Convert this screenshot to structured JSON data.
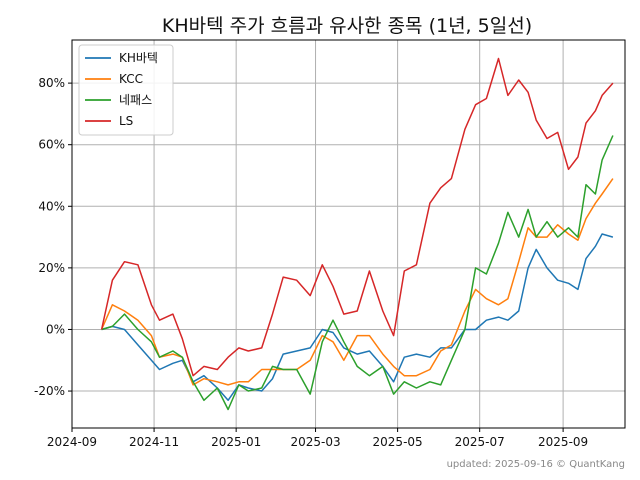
{
  "chart_data": {
    "type": "line",
    "title": "KH바텍 주가 흐름과 유사한 종목 (1년, 5일선)",
    "footer": "updated: 2025-09-16 © QuantKang",
    "x_ticks": [
      "2024-09",
      "2024-11",
      "2025-01",
      "2025-03",
      "2025-05",
      "2025-07",
      "2025-09"
    ],
    "y_ticks": [
      "-20%",
      "0%",
      "20%",
      "40%",
      "60%",
      "80%"
    ],
    "xlim": [
      "2024-09-01",
      "2025-10-17"
    ],
    "ylim": [
      -32,
      94
    ],
    "y_unit": "%",
    "grid": true,
    "legend_position": "upper-left",
    "series": [
      {
        "name": "KH바텍",
        "color": "#1f77b4",
        "points": [
          [
            "2024-09-23",
            0
          ],
          [
            "2024-10-01",
            1
          ],
          [
            "2024-10-10",
            0
          ],
          [
            "2024-10-20",
            -5
          ],
          [
            "2024-10-30",
            -10
          ],
          [
            "2024-11-05",
            -13
          ],
          [
            "2024-11-15",
            -11
          ],
          [
            "2024-11-22",
            -10
          ],
          [
            "2024-11-30",
            -17
          ],
          [
            "2024-12-08",
            -15
          ],
          [
            "2024-12-18",
            -19
          ],
          [
            "2024-12-26",
            -23
          ],
          [
            "2025-01-03",
            -18
          ],
          [
            "2025-01-10",
            -19
          ],
          [
            "2025-01-20",
            -20
          ],
          [
            "2025-01-28",
            -16
          ],
          [
            "2025-02-05",
            -8
          ],
          [
            "2025-02-15",
            -7
          ],
          [
            "2025-02-25",
            -6
          ],
          [
            "2025-03-06",
            0
          ],
          [
            "2025-03-14",
            -1
          ],
          [
            "2025-03-22",
            -6
          ],
          [
            "2025-04-01",
            -8
          ],
          [
            "2025-04-10",
            -7
          ],
          [
            "2025-04-20",
            -12
          ],
          [
            "2025-04-28",
            -17
          ],
          [
            "2025-05-06",
            -9
          ],
          [
            "2025-05-15",
            -8
          ],
          [
            "2025-05-25",
            -9
          ],
          [
            "2025-06-02",
            -6
          ],
          [
            "2025-06-10",
            -6
          ],
          [
            "2025-06-20",
            0
          ],
          [
            "2025-06-28",
            0
          ],
          [
            "2025-07-06",
            3
          ],
          [
            "2025-07-15",
            4
          ],
          [
            "2025-07-22",
            3
          ],
          [
            "2025-07-30",
            6
          ],
          [
            "2025-08-06",
            20
          ],
          [
            "2025-08-12",
            26
          ],
          [
            "2025-08-20",
            20
          ],
          [
            "2025-08-28",
            16
          ],
          [
            "2025-09-05",
            15
          ],
          [
            "2025-09-12",
            13
          ],
          [
            "2025-09-18",
            23
          ],
          [
            "2025-09-25",
            27
          ],
          [
            "2025-09-30",
            31
          ],
          [
            "2025-10-08",
            30
          ]
        ]
      },
      {
        "name": "KCC",
        "color": "#ff7f0e",
        "points": [
          [
            "2024-09-23",
            0
          ],
          [
            "2024-10-01",
            8
          ],
          [
            "2024-10-10",
            6
          ],
          [
            "2024-10-20",
            3
          ],
          [
            "2024-10-30",
            -2
          ],
          [
            "2024-11-05",
            -9
          ],
          [
            "2024-11-15",
            -8
          ],
          [
            "2024-11-22",
            -9
          ],
          [
            "2024-11-30",
            -18
          ],
          [
            "2024-12-08",
            -16
          ],
          [
            "2024-12-18",
            -17
          ],
          [
            "2024-12-26",
            -18
          ],
          [
            "2025-01-03",
            -17
          ],
          [
            "2025-01-10",
            -17
          ],
          [
            "2025-01-20",
            -13
          ],
          [
            "2025-01-28",
            -13
          ],
          [
            "2025-02-05",
            -13
          ],
          [
            "2025-02-15",
            -13
          ],
          [
            "2025-02-25",
            -10
          ],
          [
            "2025-03-06",
            -2
          ],
          [
            "2025-03-14",
            -4
          ],
          [
            "2025-03-22",
            -10
          ],
          [
            "2025-04-01",
            -2
          ],
          [
            "2025-04-10",
            -2
          ],
          [
            "2025-04-20",
            -8
          ],
          [
            "2025-04-28",
            -12
          ],
          [
            "2025-05-06",
            -15
          ],
          [
            "2025-05-15",
            -15
          ],
          [
            "2025-05-25",
            -13
          ],
          [
            "2025-06-02",
            -7
          ],
          [
            "2025-06-10",
            -5
          ],
          [
            "2025-06-20",
            6
          ],
          [
            "2025-06-28",
            13
          ],
          [
            "2025-07-06",
            10
          ],
          [
            "2025-07-15",
            8
          ],
          [
            "2025-07-22",
            10
          ],
          [
            "2025-07-30",
            22
          ],
          [
            "2025-08-06",
            33
          ],
          [
            "2025-08-12",
            30
          ],
          [
            "2025-08-20",
            30
          ],
          [
            "2025-08-28",
            34
          ],
          [
            "2025-09-05",
            31
          ],
          [
            "2025-09-12",
            29
          ],
          [
            "2025-09-18",
            36
          ],
          [
            "2025-09-25",
            41
          ],
          [
            "2025-09-30",
            44
          ],
          [
            "2025-10-08",
            49
          ]
        ]
      },
      {
        "name": "네패스",
        "color": "#2ca02c",
        "points": [
          [
            "2024-09-23",
            0
          ],
          [
            "2024-10-01",
            1
          ],
          [
            "2024-10-10",
            5
          ],
          [
            "2024-10-20",
            0
          ],
          [
            "2024-10-30",
            -4
          ],
          [
            "2024-11-05",
            -9
          ],
          [
            "2024-11-15",
            -7
          ],
          [
            "2024-11-22",
            -9
          ],
          [
            "2024-11-30",
            -17
          ],
          [
            "2024-12-08",
            -23
          ],
          [
            "2024-12-18",
            -19
          ],
          [
            "2024-12-26",
            -26
          ],
          [
            "2025-01-03",
            -18
          ],
          [
            "2025-01-10",
            -20
          ],
          [
            "2025-01-20",
            -19
          ],
          [
            "2025-01-28",
            -12
          ],
          [
            "2025-02-05",
            -13
          ],
          [
            "2025-02-15",
            -13
          ],
          [
            "2025-02-25",
            -21
          ],
          [
            "2025-03-06",
            -4
          ],
          [
            "2025-03-14",
            3
          ],
          [
            "2025-03-22",
            -4
          ],
          [
            "2025-04-01",
            -12
          ],
          [
            "2025-04-10",
            -15
          ],
          [
            "2025-04-20",
            -12
          ],
          [
            "2025-04-28",
            -21
          ],
          [
            "2025-05-06",
            -17
          ],
          [
            "2025-05-15",
            -19
          ],
          [
            "2025-05-25",
            -17
          ],
          [
            "2025-06-02",
            -18
          ],
          [
            "2025-06-10",
            -10
          ],
          [
            "2025-06-20",
            0
          ],
          [
            "2025-06-28",
            20
          ],
          [
            "2025-07-06",
            18
          ],
          [
            "2025-07-15",
            28
          ],
          [
            "2025-07-22",
            38
          ],
          [
            "2025-07-30",
            30
          ],
          [
            "2025-08-06",
            39
          ],
          [
            "2025-08-12",
            30
          ],
          [
            "2025-08-20",
            35
          ],
          [
            "2025-08-28",
            30
          ],
          [
            "2025-09-05",
            33
          ],
          [
            "2025-09-12",
            30
          ],
          [
            "2025-09-18",
            47
          ],
          [
            "2025-09-25",
            44
          ],
          [
            "2025-09-30",
            55
          ],
          [
            "2025-10-08",
            63
          ]
        ]
      },
      {
        "name": "LS",
        "color": "#d62728",
        "points": [
          [
            "2024-09-23",
            0
          ],
          [
            "2024-10-01",
            16
          ],
          [
            "2024-10-10",
            22
          ],
          [
            "2024-10-20",
            21
          ],
          [
            "2024-10-30",
            8
          ],
          [
            "2024-11-05",
            3
          ],
          [
            "2024-11-15",
            5
          ],
          [
            "2024-11-22",
            -3
          ],
          [
            "2024-11-30",
            -15
          ],
          [
            "2024-12-08",
            -12
          ],
          [
            "2024-12-18",
            -13
          ],
          [
            "2024-12-26",
            -9
          ],
          [
            "2025-01-03",
            -6
          ],
          [
            "2025-01-10",
            -7
          ],
          [
            "2025-01-20",
            -6
          ],
          [
            "2025-01-28",
            5
          ],
          [
            "2025-02-05",
            17
          ],
          [
            "2025-02-15",
            16
          ],
          [
            "2025-02-25",
            11
          ],
          [
            "2025-03-06",
            21
          ],
          [
            "2025-03-14",
            14
          ],
          [
            "2025-03-22",
            5
          ],
          [
            "2025-04-01",
            6
          ],
          [
            "2025-04-10",
            19
          ],
          [
            "2025-04-20",
            6
          ],
          [
            "2025-04-28",
            -2
          ],
          [
            "2025-05-06",
            19
          ],
          [
            "2025-05-15",
            21
          ],
          [
            "2025-05-25",
            41
          ],
          [
            "2025-06-02",
            46
          ],
          [
            "2025-06-10",
            49
          ],
          [
            "2025-06-20",
            65
          ],
          [
            "2025-06-28",
            73
          ],
          [
            "2025-07-06",
            75
          ],
          [
            "2025-07-15",
            88
          ],
          [
            "2025-07-22",
            76
          ],
          [
            "2025-07-30",
            81
          ],
          [
            "2025-08-06",
            77
          ],
          [
            "2025-08-12",
            68
          ],
          [
            "2025-08-20",
            62
          ],
          [
            "2025-08-28",
            64
          ],
          [
            "2025-09-05",
            52
          ],
          [
            "2025-09-12",
            56
          ],
          [
            "2025-09-18",
            67
          ],
          [
            "2025-09-25",
            71
          ],
          [
            "2025-09-30",
            76
          ],
          [
            "2025-10-08",
            80
          ]
        ]
      }
    ]
  }
}
